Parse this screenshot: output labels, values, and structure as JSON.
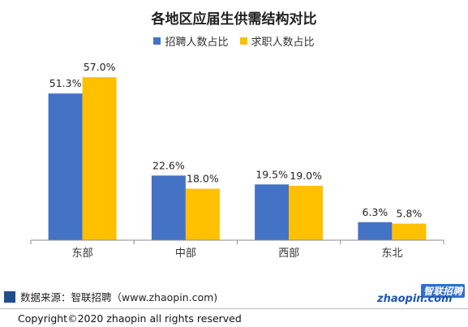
{
  "chart_data": {
    "type": "bar",
    "title": "各地区应届生供需结构对比",
    "categories": [
      "东部",
      "中部",
      "西部",
      "东北"
    ],
    "series": [
      {
        "name": "招聘人数占比",
        "values": [
          51.3,
          22.6,
          19.5,
          6.3
        ],
        "labels": [
          "51.3%",
          "22.6%",
          "19.5%",
          "6.3%"
        ],
        "color": "#4472c4"
      },
      {
        "name": "求职人数占比",
        "values": [
          57.0,
          18.0,
          19.0,
          5.8
        ],
        "labels": [
          "57.0%",
          "18.0%",
          "19.0%",
          "5.8%"
        ],
        "color": "#ffc000"
      }
    ],
    "ylim": [
      0,
      63
    ],
    "legend": "top-center",
    "grid": false
  },
  "footer": {
    "source": "数据来源：智联招聘（www.zhaopin.com)",
    "copyright": "Copyright©2020 zhaopin all rights reserved"
  },
  "logo": {
    "top": "智联招聘",
    "main": "zhaopin.com"
  }
}
